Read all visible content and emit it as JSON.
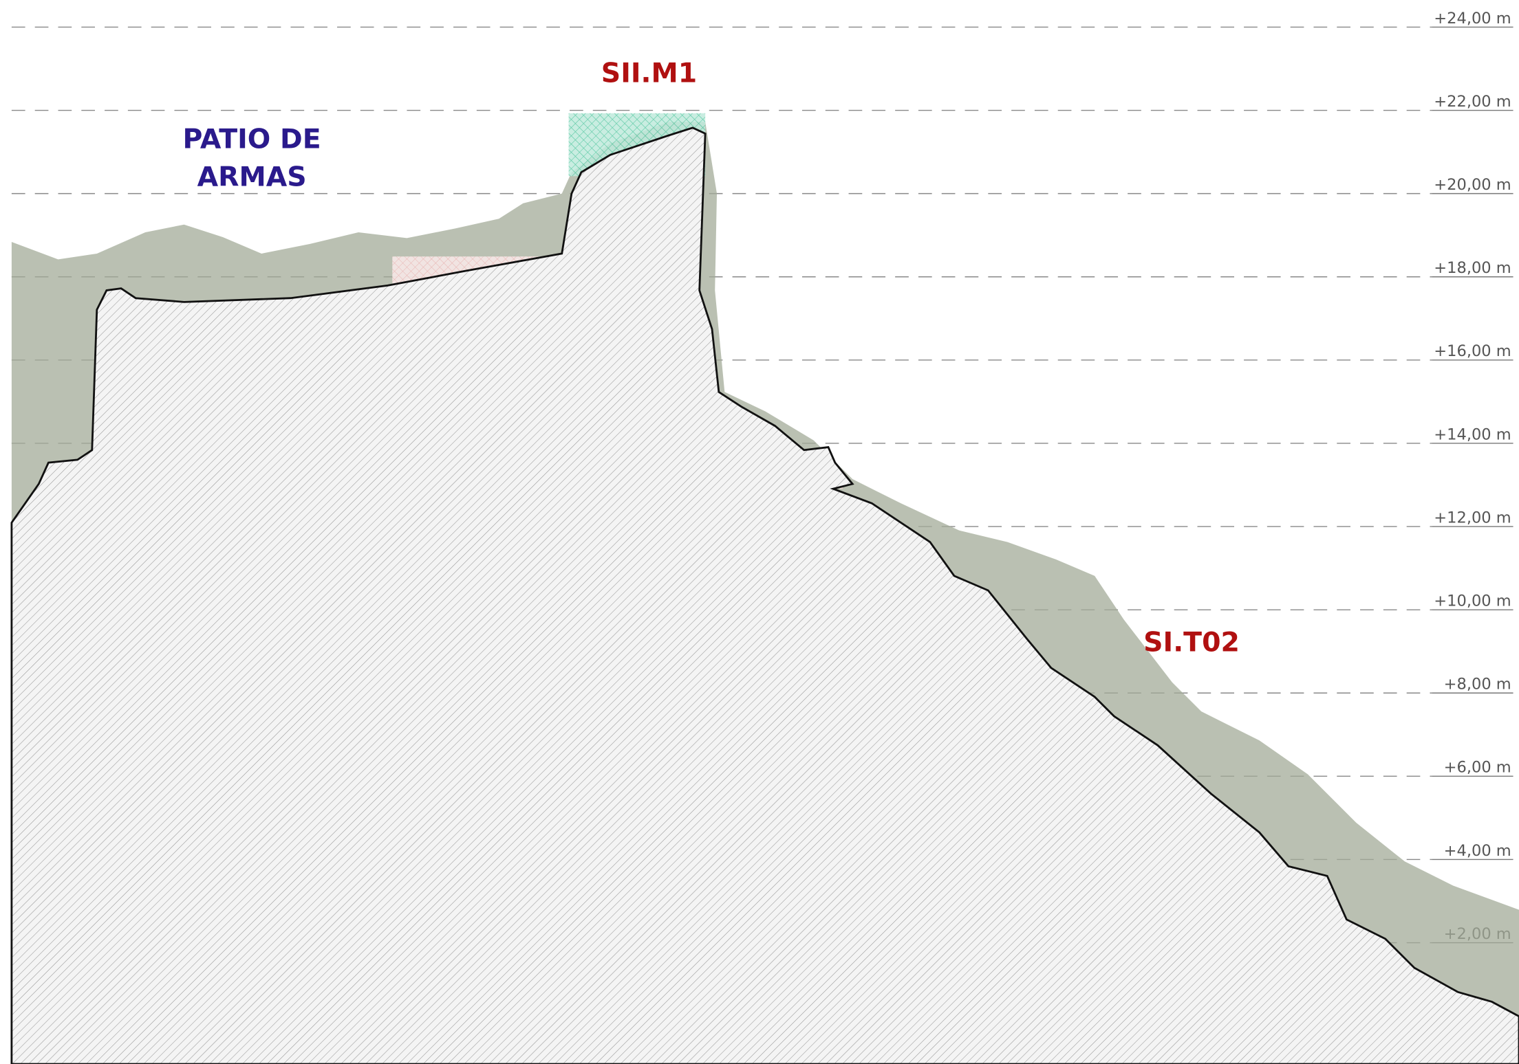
{
  "levels": [
    "+24,00 m",
    "+22,00 m",
    "+20,00 m",
    "+18,00 m",
    "+16,00 m",
    "+14,00 m",
    "+12,00 m",
    "+10,00 m",
    "+8,00 m",
    "+6,00 m",
    "+4,00 m",
    "+2,00 m"
  ],
  "annotations": {
    "patio": {
      "lines": [
        "PATIO DE",
        "ARMAS"
      ]
    },
    "wall": {
      "text": "SII.M1"
    },
    "slope": {
      "text": "SI.T02"
    }
  }
}
